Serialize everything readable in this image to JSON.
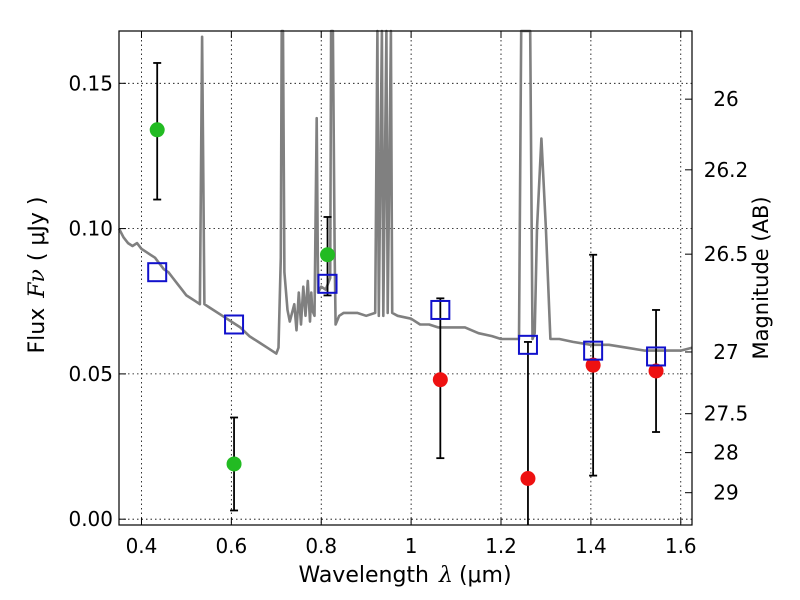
{
  "chart_data": {
    "type": "scatter",
    "xlabel": "Wavelength",
    "xlabel_symbol": "λ",
    "xlabel_unit": "(μm)",
    "ylabel": "Flux",
    "ylabel_symbol": "Fν",
    "ylabel_unit": "( μJy )",
    "y2label": "Magnitude (AB)",
    "xlim": [
      0.35,
      1.625
    ],
    "ylim": [
      -0.002,
      0.168
    ],
    "x_ticks": [
      0.4,
      0.6,
      0.8,
      1.0,
      1.2,
      1.4,
      1.6
    ],
    "x_tick_labels": [
      "0.4",
      "0.6",
      "0.8",
      "1",
      "1.2",
      "1.4",
      "1.6"
    ],
    "y_ticks": [
      0.0,
      0.05,
      0.1,
      0.15
    ],
    "y_tick_labels": [
      "0.00",
      "0.05",
      "0.10",
      "0.15"
    ],
    "y2_ticks": [
      {
        "label": "26",
        "mag": 26.0
      },
      {
        "label": "26.2",
        "mag": 26.2
      },
      {
        "label": "26.5",
        "mag": 26.5
      },
      {
        "label": "27",
        "mag": 27.0
      },
      {
        "label": "27.5",
        "mag": 27.5
      },
      {
        "label": "28",
        "mag": 28.0
      },
      {
        "label": "29",
        "mag": 29.0
      }
    ],
    "grid": true,
    "colors": {
      "detection": "#22bb22",
      "nondetection": "#ee1111",
      "model_flux": "#1111cc",
      "template": "#808080",
      "errorbar": "#000000"
    },
    "series": [
      {
        "role": "detection",
        "points": [
          {
            "x": 0.435,
            "y": 0.134,
            "ylo": 0.11,
            "yhi": 0.157
          },
          {
            "x": 0.606,
            "y": 0.019,
            "ylo": 0.003,
            "yhi": 0.035
          },
          {
            "x": 0.814,
            "y": 0.091,
            "ylo": 0.077,
            "yhi": 0.104
          }
        ]
      },
      {
        "role": "nondetection",
        "points": [
          {
            "x": 1.065,
            "y": 0.048,
            "ylo": 0.021,
            "yhi": 0.076
          },
          {
            "x": 1.26,
            "y": 0.014,
            "ylo": -0.002,
            "yhi": 0.061
          },
          {
            "x": 1.405,
            "y": 0.053,
            "ylo": 0.015,
            "yhi": 0.091
          },
          {
            "x": 1.545,
            "y": 0.051,
            "ylo": 0.03,
            "yhi": 0.072
          }
        ]
      },
      {
        "role": "model_flux",
        "points": [
          {
            "x": 0.435,
            "y": 0.085
          },
          {
            "x": 0.606,
            "y": 0.067
          },
          {
            "x": 0.814,
            "y": 0.081
          },
          {
            "x": 1.065,
            "y": 0.072
          },
          {
            "x": 1.26,
            "y": 0.06
          },
          {
            "x": 1.405,
            "y": 0.058
          },
          {
            "x": 1.545,
            "y": 0.056
          }
        ]
      },
      {
        "role": "template",
        "points": [
          [
            0.35,
            0.1
          ],
          [
            0.36,
            0.097
          ],
          [
            0.37,
            0.095
          ],
          [
            0.38,
            0.094
          ],
          [
            0.39,
            0.095
          ],
          [
            0.4,
            0.093
          ],
          [
            0.41,
            0.092
          ],
          [
            0.42,
            0.091
          ],
          [
            0.43,
            0.09
          ],
          [
            0.44,
            0.088
          ],
          [
            0.45,
            0.086
          ],
          [
            0.46,
            0.085
          ],
          [
            0.47,
            0.083
          ],
          [
            0.48,
            0.081
          ],
          [
            0.49,
            0.079
          ],
          [
            0.5,
            0.077
          ],
          [
            0.52,
            0.075
          ],
          [
            0.53,
            0.074
          ],
          [
            0.535,
            0.166
          ],
          [
            0.54,
            0.074
          ],
          [
            0.55,
            0.073
          ],
          [
            0.58,
            0.07
          ],
          [
            0.6,
            0.068
          ],
          [
            0.62,
            0.066
          ],
          [
            0.64,
            0.063
          ],
          [
            0.66,
            0.061
          ],
          [
            0.68,
            0.059
          ],
          [
            0.7,
            0.057
          ],
          [
            0.705,
            0.059
          ],
          [
            0.71,
            0.09
          ],
          [
            0.712,
            0.168
          ],
          [
            0.715,
            0.168
          ],
          [
            0.718,
            0.085
          ],
          [
            0.725,
            0.072
          ],
          [
            0.73,
            0.068
          ],
          [
            0.74,
            0.074
          ],
          [
            0.745,
            0.065
          ],
          [
            0.75,
            0.078
          ],
          [
            0.755,
            0.067
          ],
          [
            0.76,
            0.08
          ],
          [
            0.765,
            0.07
          ],
          [
            0.77,
            0.082
          ],
          [
            0.775,
            0.068
          ],
          [
            0.778,
            0.078
          ],
          [
            0.78,
            0.072
          ],
          [
            0.785,
            0.07
          ],
          [
            0.79,
            0.138
          ],
          [
            0.793,
            0.078
          ],
          [
            0.8,
            0.08
          ],
          [
            0.81,
            0.079
          ],
          [
            0.82,
            0.083
          ],
          [
            0.822,
            0.168
          ],
          [
            0.826,
            0.168
          ],
          [
            0.83,
            0.09
          ],
          [
            0.832,
            0.067
          ],
          [
            0.84,
            0.07
          ],
          [
            0.85,
            0.071
          ],
          [
            0.88,
            0.071
          ],
          [
            0.9,
            0.07
          ],
          [
            0.92,
            0.071
          ],
          [
            0.925,
            0.168
          ],
          [
            0.928,
            0.07
          ],
          [
            0.935,
            0.168
          ],
          [
            0.938,
            0.07
          ],
          [
            0.945,
            0.168
          ],
          [
            0.948,
            0.071
          ],
          [
            0.955,
            0.168
          ],
          [
            0.958,
            0.071
          ],
          [
            0.97,
            0.07
          ],
          [
            1.0,
            0.069
          ],
          [
            1.02,
            0.067
          ],
          [
            1.04,
            0.067
          ],
          [
            1.06,
            0.066
          ],
          [
            1.08,
            0.066
          ],
          [
            1.1,
            0.066
          ],
          [
            1.12,
            0.066
          ],
          [
            1.15,
            0.064
          ],
          [
            1.18,
            0.063
          ],
          [
            1.2,
            0.062
          ],
          [
            1.24,
            0.062
          ],
          [
            1.245,
            0.168
          ],
          [
            1.25,
            0.168
          ],
          [
            1.255,
            0.168
          ],
          [
            1.26,
            0.168
          ],
          [
            1.265,
            0.168
          ],
          [
            1.27,
            0.062
          ],
          [
            1.275,
            0.064
          ],
          [
            1.28,
            0.1
          ],
          [
            1.29,
            0.131
          ],
          [
            1.3,
            0.1
          ],
          [
            1.31,
            0.062
          ],
          [
            1.33,
            0.062
          ],
          [
            1.36,
            0.061
          ],
          [
            1.4,
            0.06
          ],
          [
            1.44,
            0.06
          ],
          [
            1.48,
            0.059
          ],
          [
            1.52,
            0.058
          ],
          [
            1.56,
            0.058
          ],
          [
            1.6,
            0.058
          ],
          [
            1.625,
            0.059
          ]
        ]
      }
    ]
  }
}
